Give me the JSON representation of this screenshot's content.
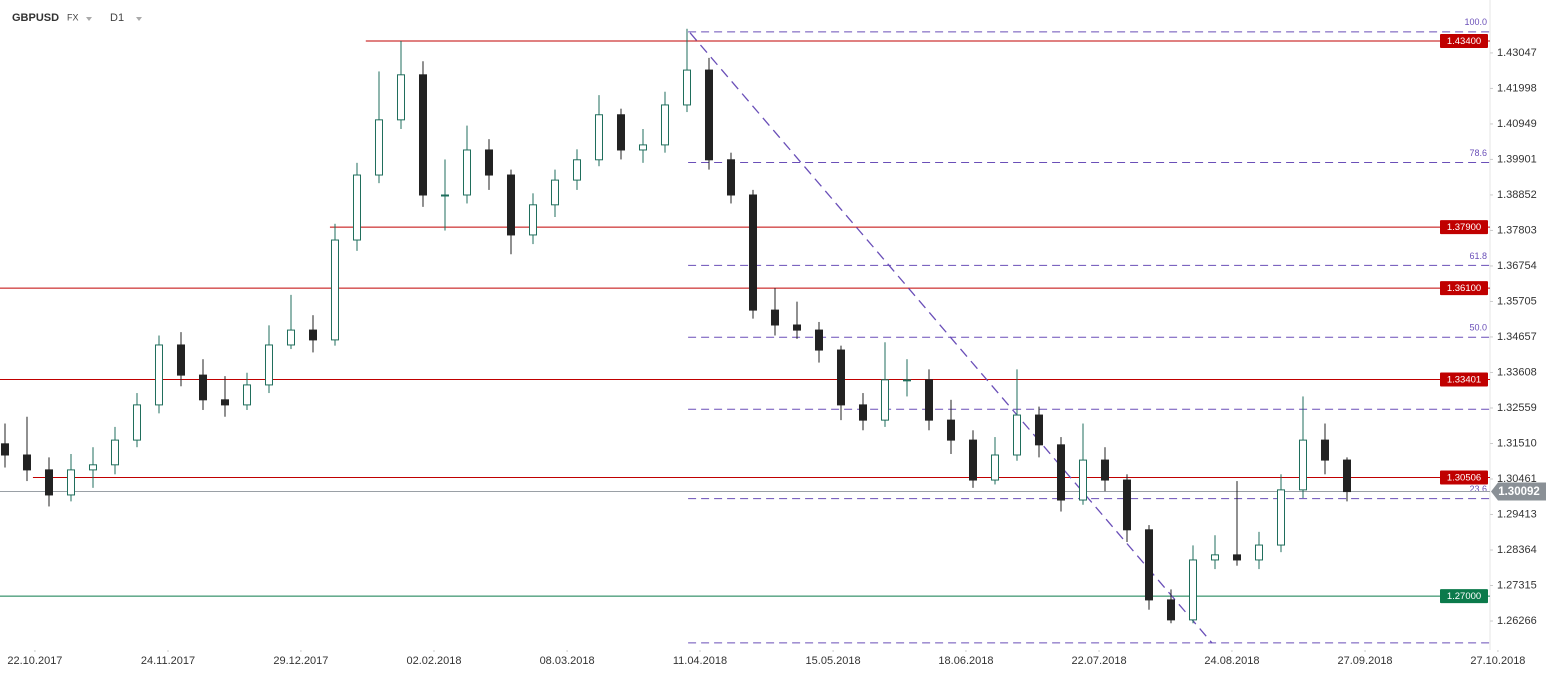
{
  "chart_data": {
    "type": "candlestick",
    "symbol": "GBPUSD",
    "market": "FX",
    "timeframe": "D1",
    "up_color": "#1f6e5c",
    "down_color": "#222222",
    "open": [
      1.315,
      1.3117,
      1.3073,
      1.2999,
      1.3073,
      1.3088,
      1.3161,
      1.3265,
      1.3442,
      1.3353,
      1.328,
      1.3265,
      1.3324,
      1.3442,
      1.3486,
      1.3457,
      1.3752,
      1.3944,
      1.4107,
      1.424,
      1.3885,
      1.3885,
      1.4018,
      1.3944,
      1.3767,
      1.3856,
      1.3929,
      1.3989,
      1.4122,
      1.4018,
      1.4033,
      1.4151,
      1.4254,
      1.3989,
      1.3885,
      1.3545,
      1.3501,
      1.3486,
      1.3427,
      1.3265,
      1.322,
      1.3339,
      1.3339,
      1.322,
      1.3161,
      1.3043,
      1.3117,
      1.3235,
      1.3147,
      1.2984,
      1.3102,
      1.3043,
      1.2896,
      1.2689,
      1.263,
      1.2807,
      1.2822,
      1.2807,
      1.2851,
      1.3014,
      1.3161,
      1.3102
    ],
    "high": [
      1.321,
      1.323,
      1.311,
      1.312,
      1.314,
      1.32,
      1.33,
      1.347,
      1.348,
      1.34,
      1.335,
      1.336,
      1.35,
      1.359,
      1.353,
      1.38,
      1.398,
      1.425,
      1.434,
      1.428,
      1.399,
      1.409,
      1.405,
      1.396,
      1.389,
      1.396,
      1.402,
      1.418,
      1.414,
      1.408,
      1.419,
      1.4376,
      1.429,
      1.401,
      1.39,
      1.361,
      1.357,
      1.351,
      1.344,
      1.33,
      1.345,
      1.34,
      1.337,
      1.328,
      1.319,
      1.317,
      1.337,
      1.326,
      1.317,
      1.321,
      1.314,
      1.306,
      1.291,
      1.272,
      1.285,
      1.288,
      1.304,
      1.289,
      1.306,
      1.329,
      1.321,
      1.311
    ],
    "low": [
      1.308,
      1.304,
      1.2965,
      1.298,
      1.302,
      1.306,
      1.314,
      1.324,
      1.332,
      1.325,
      1.323,
      1.325,
      1.33,
      1.343,
      1.342,
      1.344,
      1.372,
      1.392,
      1.408,
      1.385,
      1.378,
      1.386,
      1.39,
      1.371,
      1.374,
      1.382,
      1.39,
      1.397,
      1.399,
      1.398,
      1.401,
      1.413,
      1.396,
      1.386,
      1.352,
      1.347,
      1.346,
      1.339,
      1.322,
      1.319,
      1.32,
      1.329,
      1.319,
      1.312,
      1.302,
      1.303,
      1.31,
      1.311,
      1.295,
      1.297,
      1.301,
      1.286,
      1.266,
      1.262,
      1.262,
      1.278,
      1.279,
      1.278,
      1.283,
      1.299,
      1.306,
      1.298
    ],
    "close": [
      1.3117,
      1.3073,
      1.2999,
      1.3073,
      1.3088,
      1.3161,
      1.3265,
      1.3442,
      1.3353,
      1.328,
      1.3265,
      1.3324,
      1.3442,
      1.3486,
      1.3457,
      1.3752,
      1.3944,
      1.4107,
      1.424,
      1.3885,
      1.3885,
      1.4018,
      1.3944,
      1.3767,
      1.3856,
      1.3929,
      1.3989,
      1.4122,
      1.4018,
      1.4033,
      1.4151,
      1.4254,
      1.3989,
      1.3885,
      1.3545,
      1.3501,
      1.3486,
      1.3427,
      1.3265,
      1.322,
      1.3339,
      1.3339,
      1.322,
      1.3161,
      1.3043,
      1.3117,
      1.3235,
      1.3147,
      1.2984,
      1.3102,
      1.3043,
      1.2896,
      1.2689,
      1.263,
      1.2807,
      1.2822,
      1.2807,
      1.2851,
      1.3014,
      1.3161,
      1.3102,
      1.3009
    ],
    "xlim": [
      -0.227,
      67.5
    ],
    "ylim": [
      1.2541,
      1.4461
    ],
    "xticks": [
      {
        "value": 1.36,
        "label": "22.10.2017"
      },
      {
        "value": 7.41,
        "label": "24.11.2017"
      },
      {
        "value": 13.45,
        "label": "29.12.2017"
      },
      {
        "value": 19.5,
        "label": "02.02.2018"
      },
      {
        "value": 25.55,
        "label": "08.03.2018"
      },
      {
        "value": 31.59,
        "label": "11.04.2018"
      },
      {
        "value": 37.64,
        "label": "15.05.2018"
      },
      {
        "value": 43.68,
        "label": "18.06.2018"
      },
      {
        "value": 49.73,
        "label": "22.07.2018"
      },
      {
        "value": 55.77,
        "label": "24.08.2018"
      },
      {
        "value": 61.82,
        "label": "27.09.2018"
      },
      {
        "value": 67.86,
        "label": "27.10.2018"
      }
    ],
    "yticks": [
      1.43047,
      1.41998,
      1.40949,
      1.39901,
      1.38852,
      1.37803,
      1.36754,
      1.35705,
      1.34657,
      1.33608,
      1.32559,
      1.3151,
      1.30461,
      1.29413,
      1.28364,
      1.27315,
      1.26266
    ],
    "ytick_labels": [
      "1.43047",
      "1.41998",
      "1.40949",
      "1.39901",
      "1.38852",
      "1.37803",
      "1.36754",
      "1.35705",
      "1.34657",
      "1.33608",
      "1.32559",
      "1.31510",
      "1.30461",
      "1.29413",
      "1.28364",
      "1.27315",
      "1.26266"
    ],
    "levels": [
      {
        "value": 1.434,
        "label": "1.43400",
        "color": "#c00000",
        "from": 16.4
      },
      {
        "value": 1.379,
        "label": "1.37900",
        "color": "#c00000",
        "from": 14.77
      },
      {
        "value": 1.361,
        "label": "1.36100",
        "color": "#c00000",
        "from": -0.227
      },
      {
        "value": 1.33401,
        "label": "1.33401",
        "color": "#c00000",
        "from": -0.227
      },
      {
        "value": 1.30506,
        "label": "1.30506",
        "color": "#c00000",
        "from": 1.27
      },
      {
        "value": 1.27,
        "label": "1.27000",
        "color": "#0b7a4b",
        "from": -0.227
      }
    ],
    "current_price": {
      "value": 1.30092,
      "label": "1.30092",
      "color": "#8a9096"
    },
    "fibonacci": {
      "color": "#6a4fb8",
      "from": 31.05,
      "levels": [
        {
          "ratio": {
            "value": 100,
            "label": "100.0"
          },
          "price": 1.4367
        },
        {
          "ratio": 78.6,
          "price": 1.3981
        },
        {
          "ratio": 61.8,
          "price": 1.3677
        },
        {
          "ratio": {
            "value": 50,
            "label": "50.0"
          },
          "price": 1.3465
        },
        {
          "ratio": null,
          "price": 1.3252
        },
        {
          "ratio": 23.6,
          "price": 1.2988
        },
        {
          "ratio": null,
          "price": 1.2562
        }
      ]
    },
    "trendline": {
      "x": [
        31.14,
        54.86
      ],
      "y": [
        1.4364,
        1.2562
      ],
      "color": "#6a4fb8"
    }
  }
}
